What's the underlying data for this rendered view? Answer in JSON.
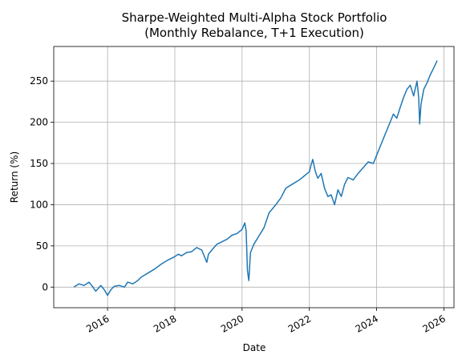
{
  "chart_data": {
    "type": "line",
    "title_line1": "Sharpe-Weighted Multi-Alpha Stock Portfolio",
    "title_line2": "(Monthly Rebalance, T+1 Execution)",
    "xlabel": "Date",
    "ylabel": "Return (%)",
    "xlim": [
      2014.4,
      2026.3
    ],
    "ylim": [
      -25,
      292
    ],
    "xticks": [
      2016,
      2018,
      2020,
      2022,
      2024,
      2026
    ],
    "xtick_labels": [
      "2016",
      "2018",
      "2020",
      "2022",
      "2024",
      "2026"
    ],
    "yticks": [
      0,
      50,
      100,
      150,
      200,
      250
    ],
    "ytick_labels": [
      "0",
      "50",
      "100",
      "150",
      "200",
      "250"
    ],
    "grid": true,
    "line_color": "#1f77b4",
    "series": [
      {
        "x": [
          2015.0,
          2015.15,
          2015.3,
          2015.45,
          2015.55,
          2015.65,
          2015.8,
          2015.9,
          2016.0,
          2016.1,
          2016.2,
          2016.35,
          2016.5,
          2016.6,
          2016.75,
          2016.9,
          2017.0,
          2017.2,
          2017.4,
          2017.6,
          2017.8,
          2018.0,
          2018.1,
          2018.2,
          2018.35,
          2018.5,
          2018.65,
          2018.8,
          2018.95,
          2019.0,
          2019.1,
          2019.25,
          2019.4,
          2019.55,
          2019.7,
          2019.85,
          2020.0,
          2020.08,
          2020.12,
          2020.16,
          2020.2,
          2020.25,
          2020.35,
          2020.5,
          2020.65,
          2020.8,
          2021.0,
          2021.15,
          2021.3,
          2021.5,
          2021.7,
          2021.85,
          2022.0,
          2022.05,
          2022.1,
          2022.18,
          2022.25,
          2022.35,
          2022.45,
          2022.55,
          2022.65,
          2022.75,
          2022.85,
          2022.95,
          2023.05,
          2023.15,
          2023.3,
          2023.45,
          2023.6,
          2023.75,
          2023.9,
          2024.0,
          2024.1,
          2024.2,
          2024.3,
          2024.4,
          2024.5,
          2024.6,
          2024.7,
          2024.8,
          2024.9,
          2025.0,
          2025.1,
          2025.2,
          2025.25,
          2025.28,
          2025.32,
          2025.4,
          2025.5,
          2025.6,
          2025.7,
          2025.8
        ],
        "y": [
          0,
          4,
          2,
          6,
          1,
          -5,
          2,
          -3,
          -10,
          -3,
          1,
          2,
          0,
          6,
          4,
          8,
          12,
          17,
          22,
          28,
          33,
          37,
          40,
          38,
          42,
          43,
          48,
          45,
          30,
          40,
          45,
          52,
          55,
          58,
          63,
          65,
          70,
          78,
          68,
          20,
          8,
          42,
          52,
          62,
          72,
          90,
          100,
          108,
          120,
          125,
          130,
          135,
          140,
          148,
          155,
          140,
          132,
          138,
          120,
          110,
          112,
          100,
          118,
          110,
          125,
          133,
          130,
          138,
          145,
          152,
          150,
          160,
          170,
          180,
          190,
          200,
          210,
          205,
          218,
          230,
          240,
          245,
          232,
          250,
          230,
          198,
          222,
          240,
          248,
          258,
          266,
          275
        ]
      }
    ]
  }
}
